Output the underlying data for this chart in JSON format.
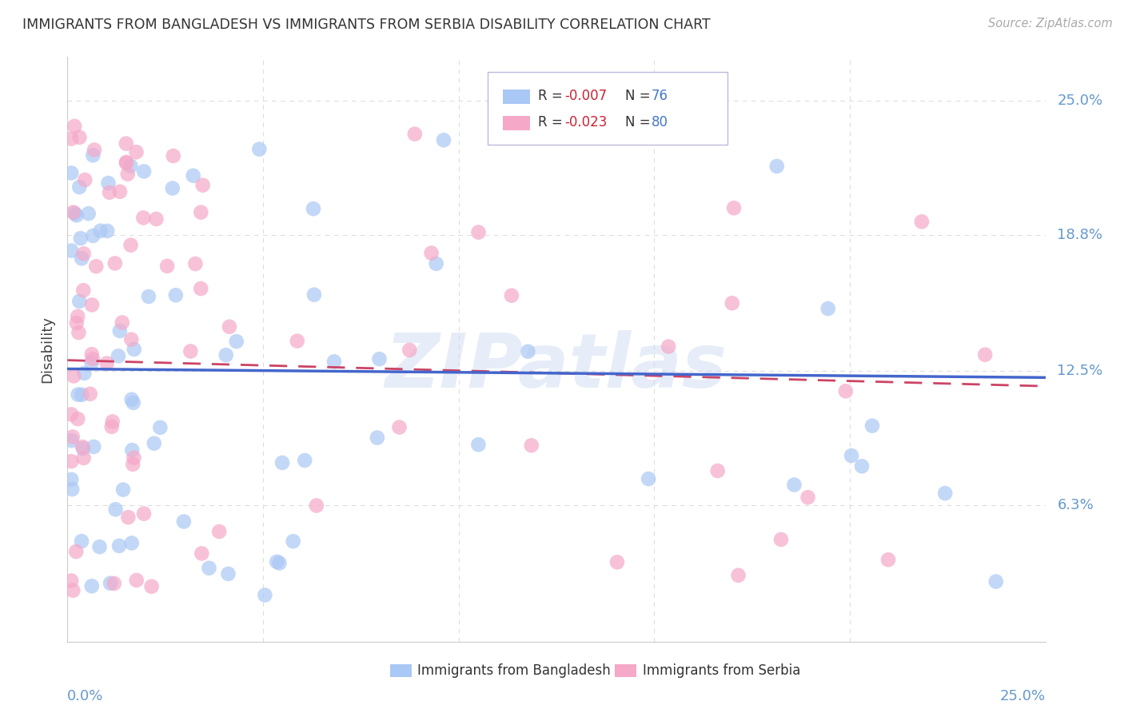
{
  "title": "IMMIGRANTS FROM BANGLADESH VS IMMIGRANTS FROM SERBIA DISABILITY CORRELATION CHART",
  "source": "Source: ZipAtlas.com",
  "ylabel": "Disability",
  "y_tick_vals": [
    0.0,
    0.063,
    0.125,
    0.188,
    0.25
  ],
  "y_tick_labels": [
    "",
    "6.3%",
    "12.5%",
    "18.8%",
    "25.0%"
  ],
  "x_lim": [
    0.0,
    0.25
  ],
  "y_lim": [
    0.0,
    0.27
  ],
  "legend_r1": "-0.007",
  "legend_n1": "76",
  "legend_r2": "-0.023",
  "legend_n2": "80",
  "color_bangladesh": "#aac8f5",
  "color_serbia": "#f5a8c8",
  "color_bangladesh_line": "#4466cc",
  "color_serbia_line": "#cc4466",
  "watermark": "ZIPatlas",
  "bg_color": "#ffffff",
  "grid_color": "#dddddd",
  "label_color": "#6699cc",
  "title_color": "#333333",
  "source_color": "#aaaaaa"
}
